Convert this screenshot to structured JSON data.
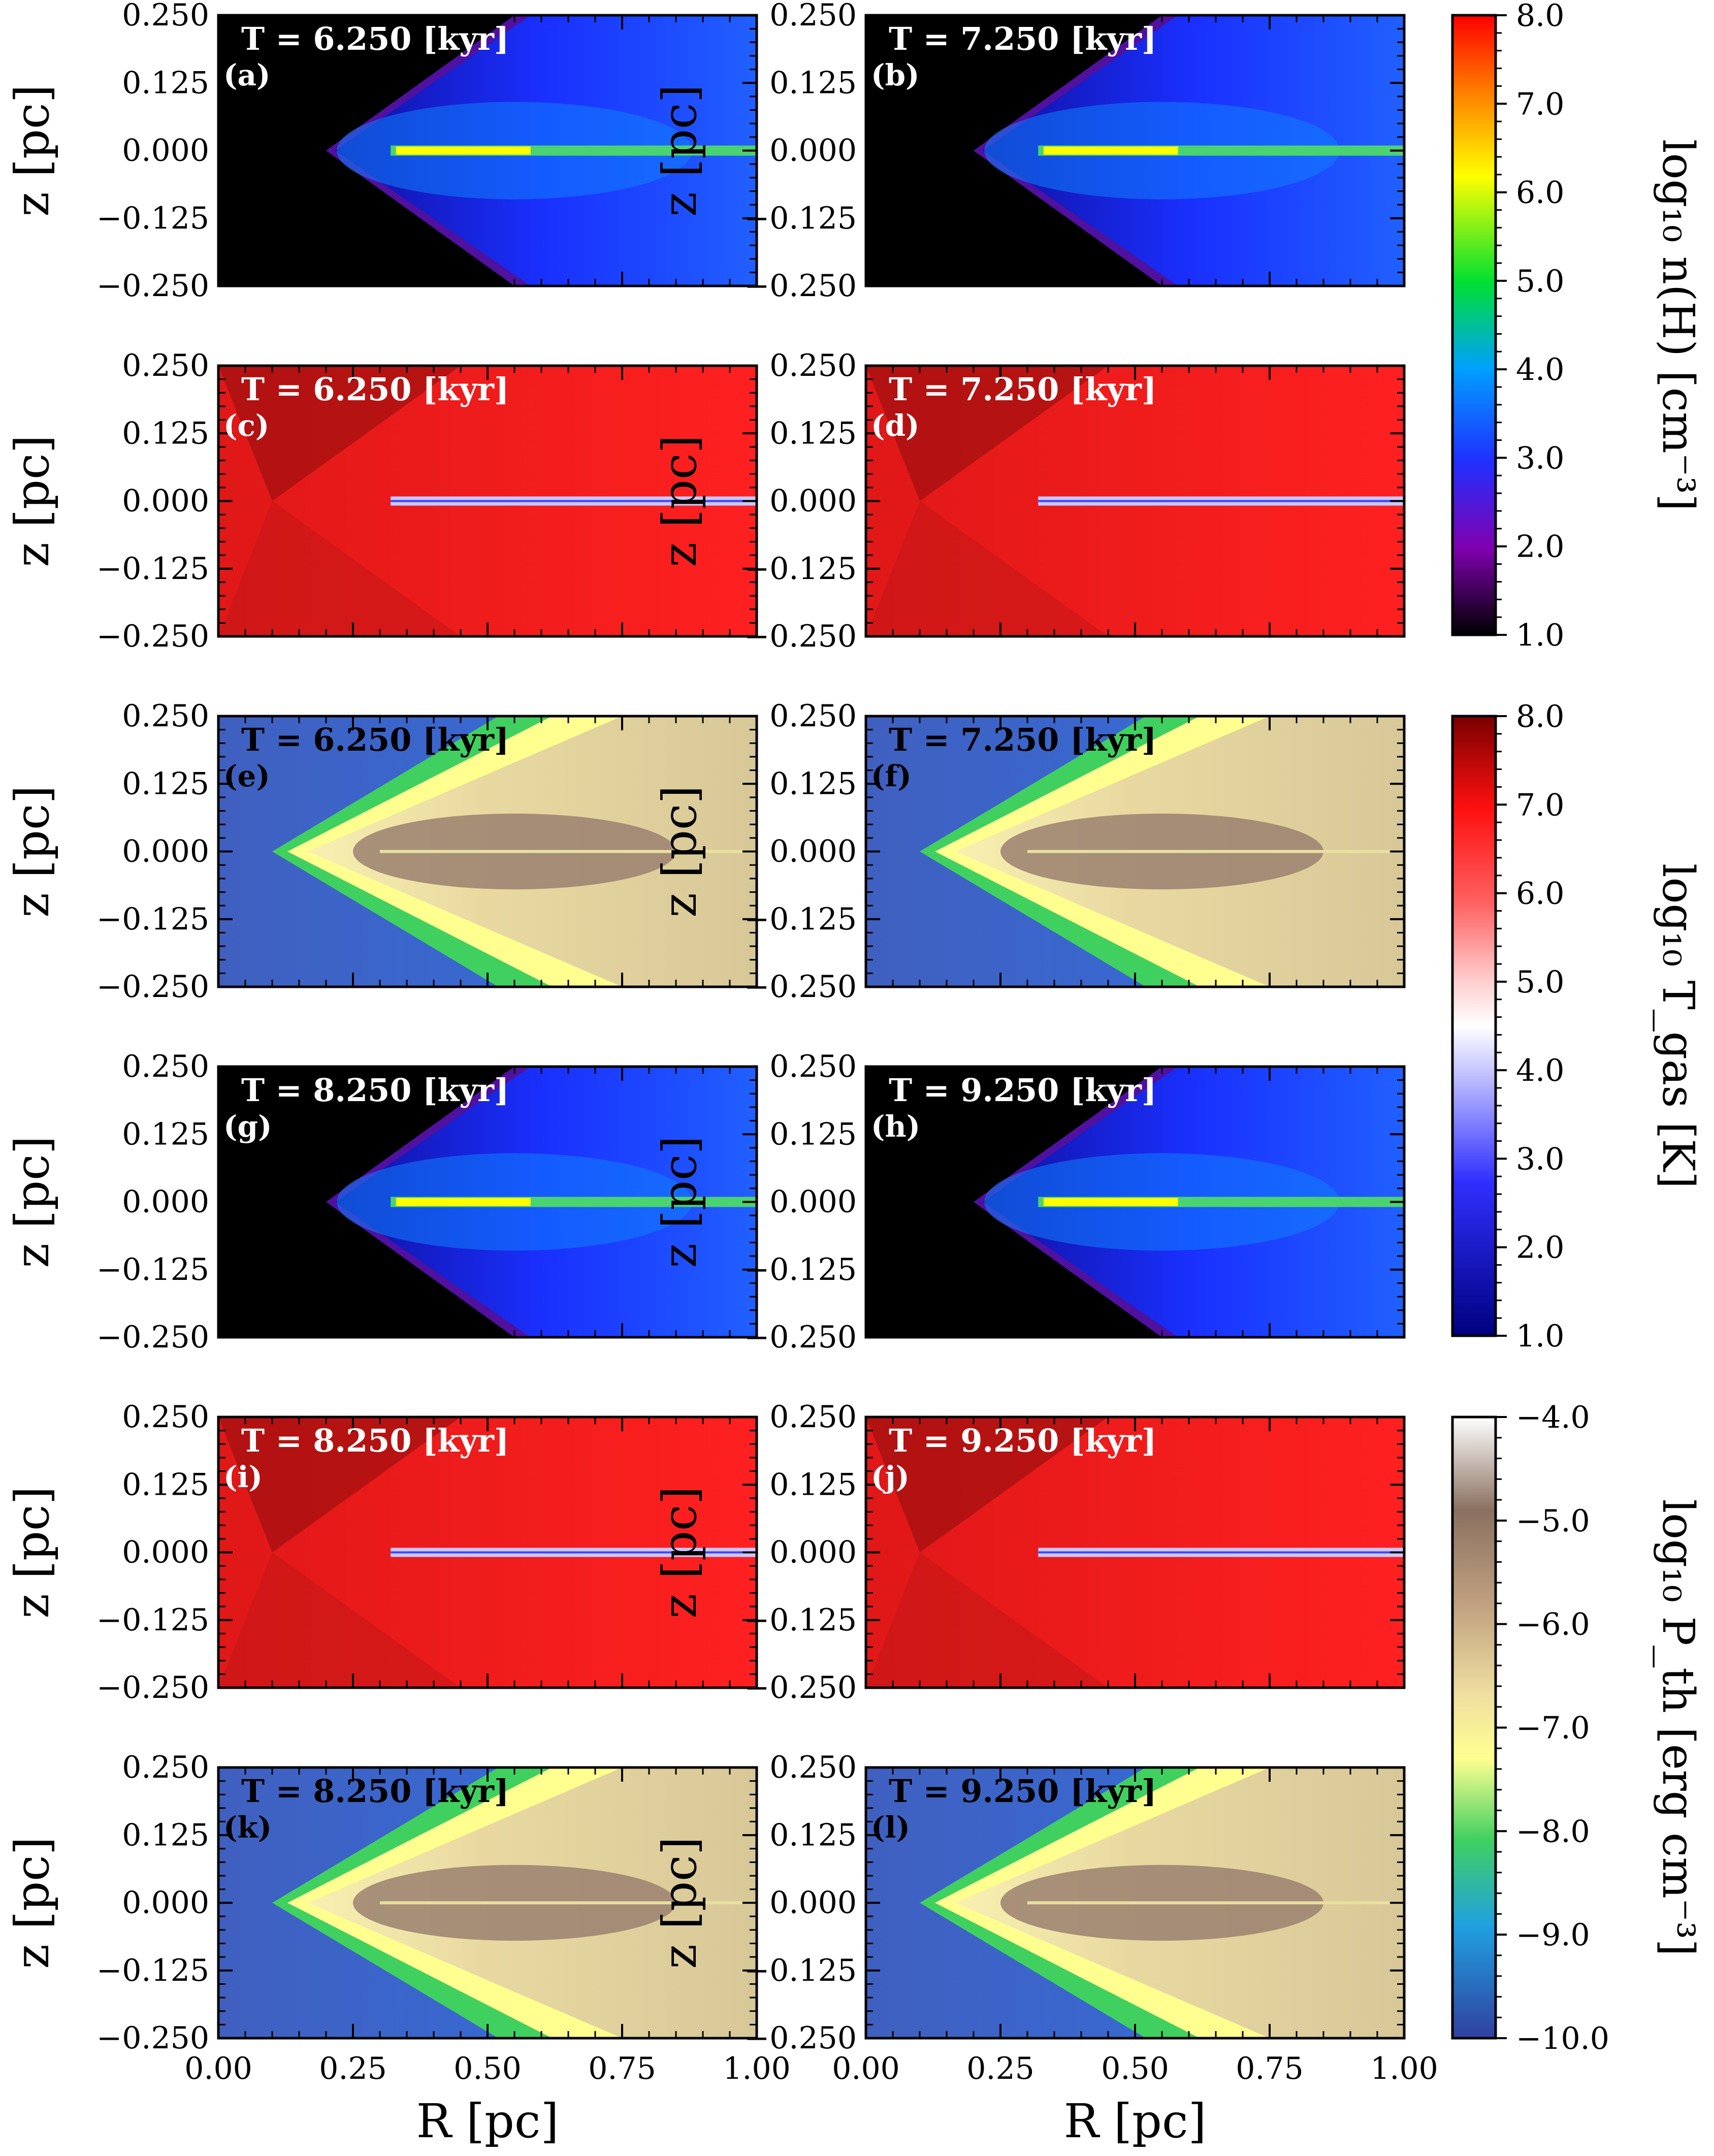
{
  "chart_data": {
    "type": "heatmap",
    "title": "",
    "xlabel": "R [pc]",
    "ylabel": "z [pc]",
    "xlim": [
      0.0,
      1.0
    ],
    "ylim": [
      -0.25,
      0.25
    ],
    "xticks": [
      "0.00",
      "0.25",
      "0.50",
      "0.75",
      "1.00"
    ],
    "yticks": [
      "0.250",
      "0.125",
      "0.000",
      "−0.125",
      "−0.250"
    ],
    "panels": [
      {
        "label": "(a)",
        "time": "T =  6.250 [kyr]",
        "quantity": "density"
      },
      {
        "label": "(b)",
        "time": "T =  7.250 [kyr]",
        "quantity": "density"
      },
      {
        "label": "(c)",
        "time": "T =  6.250 [kyr]",
        "quantity": "temperature"
      },
      {
        "label": "(d)",
        "time": "T =  7.250 [kyr]",
        "quantity": "temperature"
      },
      {
        "label": "(e)",
        "time": "T =  6.250 [kyr]",
        "quantity": "pressure"
      },
      {
        "label": "(f)",
        "time": "T =  7.250 [kyr]",
        "quantity": "pressure"
      },
      {
        "label": "(g)",
        "time": "T =  8.250 [kyr]",
        "quantity": "density"
      },
      {
        "label": "(h)",
        "time": "T =  9.250 [kyr]",
        "quantity": "density"
      },
      {
        "label": "(i)",
        "time": "T =  8.250 [kyr]",
        "quantity": "temperature"
      },
      {
        "label": "(j)",
        "time": "T =  9.250 [kyr]",
        "quantity": "temperature"
      },
      {
        "label": "(k)",
        "time": "T =  8.250 [kyr]",
        "quantity": "pressure"
      },
      {
        "label": "(l)",
        "time": "T =  9.250 [kyr]",
        "quantity": "pressure"
      }
    ],
    "colorbars": [
      {
        "id": "density",
        "label": "log₁₀ n(H) [cm⁻³]",
        "range": [
          1.0,
          8.0
        ],
        "ticks": [
          "8.0",
          "7.0",
          "6.0",
          "5.0",
          "4.0",
          "3.0",
          "2.0",
          "1.0"
        ]
      },
      {
        "id": "temperature",
        "label": "log₁₀ T_gas [K]",
        "range": [
          1.0,
          8.0
        ],
        "ticks": [
          "8.0",
          "7.0",
          "6.0",
          "5.0",
          "4.0",
          "3.0",
          "2.0",
          "1.0"
        ]
      },
      {
        "id": "pressure",
        "label": "log₁₀ P_th [erg cm⁻³]",
        "range": [
          -10.0,
          -4.0
        ],
        "ticks": [
          "−4.0",
          "−5.0",
          "−6.0",
          "−7.0",
          "−8.0",
          "−9.0",
          "−10.0"
        ]
      }
    ]
  }
}
